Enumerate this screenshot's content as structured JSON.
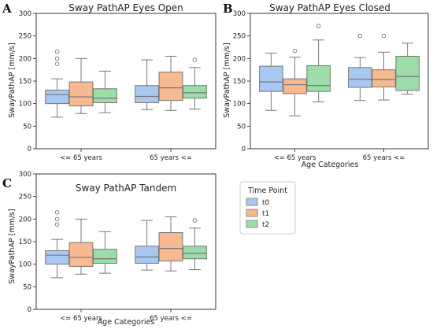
{
  "colors": {
    "t0": "#a8c8ef",
    "t1": "#f6b990",
    "t2": "#9bdca9",
    "line": "#777777",
    "axis": "#222222"
  },
  "legend": {
    "title": "Time Point",
    "entries": [
      "t0",
      "t1",
      "t2"
    ]
  },
  "chart_data": [
    {
      "panel": "A",
      "type": "boxplot",
      "title": "Sway PathAP Eyes Open",
      "xlabel": "",
      "ylabel": "SwayPathAP [mm/s]",
      "ylim": [
        0,
        300
      ],
      "yticks": [
        0,
        50,
        100,
        150,
        200,
        250,
        300
      ],
      "categories": [
        "<= 65 years",
        "65 years <="
      ],
      "series": [
        {
          "name": "t0",
          "boxes": [
            {
              "whislo": 70,
              "q1": 100,
              "med": 120,
              "q3": 130,
              "whishi": 155,
              "fliers": [
                188,
                200,
                215
              ]
            },
            {
              "whislo": 87,
              "q1": 102,
              "med": 116,
              "q3": 140,
              "whishi": 197,
              "fliers": []
            }
          ]
        },
        {
          "name": "t1",
          "boxes": [
            {
              "whislo": 78,
              "q1": 95,
              "med": 115,
              "q3": 148,
              "whishi": 200,
              "fliers": []
            },
            {
              "whislo": 85,
              "q1": 107,
              "med": 135,
              "q3": 170,
              "whishi": 205,
              "fliers": []
            }
          ]
        },
        {
          "name": "t2",
          "boxes": [
            {
              "whislo": 80,
              "q1": 102,
              "med": 112,
              "q3": 133,
              "whishi": 172,
              "fliers": []
            },
            {
              "whislo": 88,
              "q1": 112,
              "med": 124,
              "q3": 140,
              "whishi": 180,
              "fliers": [
                197
              ]
            }
          ]
        }
      ]
    },
    {
      "panel": "B",
      "type": "boxplot",
      "title": "Sway PathAP Eyes Closed",
      "xlabel": "Age Categories",
      "ylabel": "SwayPathAP [mm/s]",
      "ylim": [
        0,
        300
      ],
      "yticks": [
        0,
        50,
        100,
        150,
        200,
        250,
        300
      ],
      "categories": [
        "<= 65 years",
        "65 years <="
      ],
      "series": [
        {
          "name": "t0",
          "boxes": [
            {
              "whislo": 85,
              "q1": 127,
              "med": 148,
              "q3": 183,
              "whishi": 212,
              "fliers": []
            },
            {
              "whislo": 107,
              "q1": 136,
              "med": 154,
              "q3": 180,
              "whishi": 202,
              "fliers": [
                250
              ]
            }
          ]
        },
        {
          "name": "t1",
          "boxes": [
            {
              "whislo": 73,
              "q1": 122,
              "med": 142,
              "q3": 155,
              "whishi": 203,
              "fliers": [
                217
              ]
            },
            {
              "whislo": 108,
              "q1": 137,
              "med": 153,
              "q3": 175,
              "whishi": 214,
              "fliers": [
                250
              ]
            }
          ]
        },
        {
          "name": "t2",
          "boxes": [
            {
              "whislo": 104,
              "q1": 127,
              "med": 140,
              "q3": 184,
              "whishi": 241,
              "fliers": [
                272
              ]
            },
            {
              "whislo": 121,
              "q1": 129,
              "med": 160,
              "q3": 205,
              "whishi": 234,
              "fliers": []
            }
          ]
        }
      ]
    },
    {
      "panel": "C",
      "type": "boxplot",
      "title": "Sway PathAP Tandem",
      "xlabel": "Age Categories",
      "ylabel": "SwayPathAP [mm/s]",
      "ylim": [
        0,
        300
      ],
      "yticks": [
        0,
        50,
        100,
        150,
        200,
        250,
        300
      ],
      "categories": [
        "<= 65 years",
        "65 years <="
      ],
      "series": [
        {
          "name": "t0",
          "boxes": [
            {
              "whislo": 70,
              "q1": 100,
              "med": 120,
              "q3": 130,
              "whishi": 155,
              "fliers": [
                188,
                200,
                215
              ]
            },
            {
              "whislo": 87,
              "q1": 102,
              "med": 116,
              "q3": 140,
              "whishi": 197,
              "fliers": []
            }
          ]
        },
        {
          "name": "t1",
          "boxes": [
            {
              "whislo": 78,
              "q1": 95,
              "med": 115,
              "q3": 148,
              "whishi": 200,
              "fliers": []
            },
            {
              "whislo": 85,
              "q1": 107,
              "med": 135,
              "q3": 170,
              "whishi": 205,
              "fliers": []
            }
          ]
        },
        {
          "name": "t2",
          "boxes": [
            {
              "whislo": 80,
              "q1": 102,
              "med": 112,
              "q3": 133,
              "whishi": 172,
              "fliers": []
            },
            {
              "whislo": 88,
              "q1": 112,
              "med": 124,
              "q3": 140,
              "whishi": 180,
              "fliers": [
                197
              ]
            }
          ]
        }
      ]
    }
  ]
}
